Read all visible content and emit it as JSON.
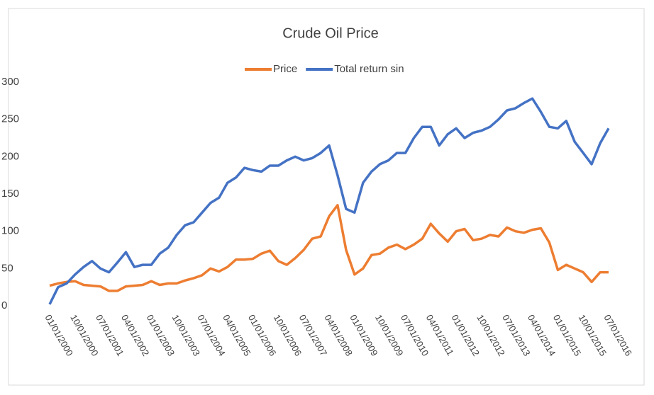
{
  "chart_data": {
    "type": "line",
    "title": "Crude Oil Price",
    "categories": [
      "01/01/2000",
      null,
      null,
      "10/01/2000",
      null,
      null,
      "07/01/2001",
      null,
      null,
      "04/01/2002",
      null,
      null,
      "01/01/2003",
      null,
      null,
      "10/01/2003",
      null,
      null,
      "07/01/2004",
      null,
      null,
      "04/01/2005",
      null,
      null,
      "01/01/2006",
      null,
      null,
      "10/01/2006",
      null,
      null,
      "07/01/2007",
      null,
      null,
      "04/01/2008",
      null,
      null,
      "01/01/2009",
      null,
      null,
      "10/01/2009",
      null,
      null,
      "07/01/2010",
      null,
      null,
      "04/01/2011",
      null,
      null,
      "01/01/2012",
      null,
      null,
      "10/01/2012",
      null,
      null,
      "07/01/2013",
      null,
      null,
      "04/01/2014",
      null,
      null,
      "01/01/2015",
      null,
      null,
      "10/01/2015",
      null,
      null,
      "07/01/2016"
    ],
    "series": [
      {
        "name": "Price",
        "color": "#ed7d31",
        "values": [
          27,
          30,
          32,
          33,
          28,
          27,
          26,
          20,
          20,
          26,
          27,
          28,
          33,
          28,
          30,
          30,
          34,
          37,
          41,
          50,
          46,
          52,
          62,
          62,
          63,
          70,
          74,
          60,
          55,
          64,
          75,
          90,
          93,
          120,
          135,
          75,
          42,
          50,
          68,
          70,
          78,
          82,
          76,
          82,
          90,
          110,
          97,
          86,
          100,
          103,
          88,
          90,
          95,
          93,
          105,
          100,
          98,
          102,
          104,
          85,
          48,
          55,
          50,
          45,
          32,
          45,
          45
        ]
      },
      {
        "name": "Total return sin",
        "color": "#4472c4",
        "values": [
          2,
          25,
          30,
          42,
          52,
          60,
          50,
          45,
          58,
          72,
          52,
          55,
          55,
          70,
          78,
          95,
          108,
          112,
          125,
          138,
          145,
          165,
          172,
          185,
          182,
          180,
          188,
          188,
          195,
          200,
          195,
          198,
          205,
          215,
          175,
          130,
          125,
          165,
          180,
          190,
          195,
          205,
          205,
          225,
          240,
          240,
          215,
          230,
          238,
          225,
          232,
          235,
          240,
          250,
          262,
          265,
          272,
          278,
          260,
          240,
          238,
          248,
          220,
          205,
          190,
          218,
          238
        ]
      }
    ],
    "ylim": [
      0,
      300
    ],
    "yticks": [
      0,
      50,
      100,
      150,
      200,
      250,
      300
    ],
    "grid": false,
    "legend": "top"
  }
}
